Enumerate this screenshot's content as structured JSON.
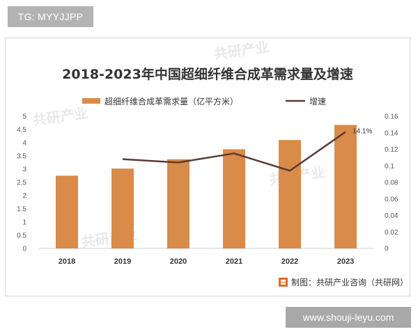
{
  "badges": {
    "tg": "TG: MYYJJPP",
    "site": "www.shouji-leyu.com"
  },
  "chart_data": {
    "type": "bar",
    "title": "2018-2023年中国超细纤维合成革需求量及增速",
    "categories": [
      "2018",
      "2019",
      "2020",
      "2021",
      "2022",
      "2023"
    ],
    "series": [
      {
        "name": "超细纤维合成革需求量（亿平方米）",
        "type": "bar",
        "axis": "left",
        "color": "#d98b4a",
        "values": [
          2.75,
          3.02,
          3.37,
          3.75,
          4.1,
          4.67
        ]
      },
      {
        "name": "增速",
        "type": "line",
        "axis": "right",
        "color": "#5a3a35",
        "values": [
          null,
          0.108,
          0.104,
          0.115,
          0.094,
          0.141
        ]
      }
    ],
    "y_left": {
      "ylim": [
        0,
        5
      ],
      "ticks": [
        "0",
        "0.5",
        "1",
        "1.5",
        "2",
        "2.5",
        "3",
        "3.5",
        "4",
        "4.5",
        "5"
      ]
    },
    "y_right": {
      "ylim": [
        0,
        0.16
      ],
      "ticks": [
        "0",
        "0.02",
        "0.04",
        "0.06",
        "0.08",
        "0.1",
        "0.12",
        "0.14",
        "0.16"
      ]
    },
    "annotation": {
      "label": "14.1%",
      "category": "2023"
    },
    "legend_position": "top",
    "grid": false,
    "source": "制图：共研产业咨询（共研网）",
    "source_icon": "gongyan-logo-icon"
  }
}
